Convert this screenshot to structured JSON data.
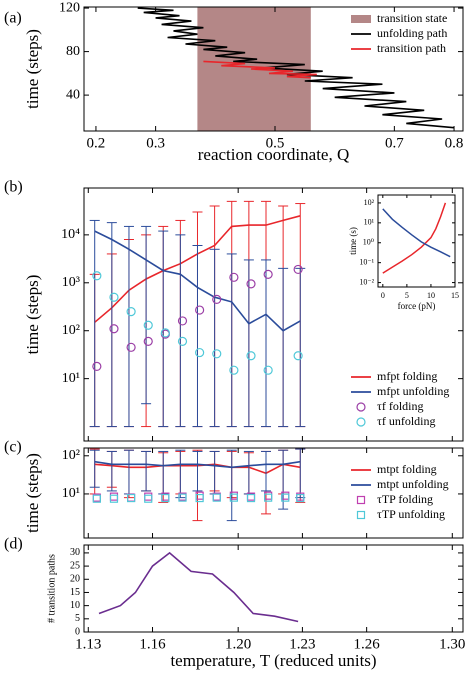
{
  "chart_data": [
    {
      "type": "line",
      "panel": "(a)",
      "xlabel": "reaction coordinate, Q",
      "ylabel": "time (steps)",
      "xlim": [
        0.18,
        0.815
      ],
      "xticks": [
        0.2,
        0.3,
        0.5,
        0.7,
        0.8
      ],
      "ylim": [
        7,
        121
      ],
      "yticks": [
        40,
        80,
        120
      ],
      "legend": "upper right",
      "span": {
        "name": "transition state",
        "x": [
          0.37,
          0.56
        ],
        "color": "#b48787"
      },
      "series": [
        {
          "name": "unfolding path",
          "color": "#000000",
          "style": "line",
          "x": [
            0.27,
            0.33,
            0.28,
            0.34,
            0.3,
            0.36,
            0.31,
            0.38,
            0.33,
            0.37,
            0.32,
            0.4,
            0.35,
            0.42,
            0.38,
            0.45,
            0.4,
            0.47,
            0.43,
            0.55,
            0.48,
            0.58,
            0.52,
            0.63,
            0.55,
            0.68,
            0.58,
            0.7,
            0.6,
            0.72,
            0.65,
            0.75,
            0.68,
            0.78,
            0.72,
            0.8
          ],
          "values": [
            120,
            118,
            116,
            113,
            111,
            108,
            105,
            102,
            99,
            96,
            93,
            90,
            87,
            84,
            82,
            79,
            76,
            73,
            71,
            68,
            65,
            62,
            59,
            56,
            53,
            50,
            46,
            42,
            38,
            34,
            30,
            26,
            22,
            18,
            14,
            10
          ]
        },
        {
          "name": "transition path",
          "color": "#e8262b",
          "style": "line",
          "x": [
            0.38,
            0.45,
            0.41,
            0.5,
            0.46,
            0.53,
            0.49,
            0.57,
            0.52,
            0.56
          ],
          "values": [
            71,
            69,
            67,
            65,
            64,
            62,
            60,
            59,
            57,
            56
          ]
        }
      ]
    },
    {
      "type": "line",
      "panel": "(b)",
      "ylabel": "time (steps)",
      "ylog": true,
      "xlim": [
        1.128,
        1.305
      ],
      "xticks": [
        1.13,
        1.16,
        1.2,
        1.23,
        1.26,
        1.3
      ],
      "xtick_labels": false,
      "ylim": [
        0.5,
        95000
      ],
      "yticks": [
        {
          "value": 10,
          "label": "10¹"
        },
        {
          "value": 100,
          "label": "10²"
        },
        {
          "value": 1000,
          "label": "10³"
        },
        {
          "value": 10000,
          "label": "10⁴"
        }
      ],
      "legend": "lower right",
      "series": [
        {
          "name": "mfpt folding",
          "color": "#e8262b",
          "style": "line",
          "x": [
            1.133,
            1.141,
            1.149,
            1.157,
            1.165,
            1.173,
            1.181,
            1.189,
            1.197,
            1.205,
            1.213,
            1.221,
            1.229
          ],
          "values": [
            150,
            300,
            700,
            1200,
            1800,
            2500,
            4000,
            6000,
            15000,
            16000,
            16000,
            20000,
            25000
          ],
          "lower": [
            1,
            1,
            1,
            1,
            1,
            1,
            1,
            1,
            1,
            1,
            1,
            1,
            1
          ],
          "upper": [
            1500,
            4000,
            8000,
            10000,
            15000,
            20000,
            30000,
            40000,
            50000,
            50000,
            50000,
            40000,
            45000
          ]
        },
        {
          "name": "mfpt unfolding",
          "color": "#2b4c9b",
          "style": "line",
          "x": [
            1.133,
            1.141,
            1.149,
            1.157,
            1.165,
            1.173,
            1.181,
            1.189,
            1.197,
            1.205,
            1.213,
            1.221,
            1.229
          ],
          "values": [
            12000,
            8000,
            5000,
            3000,
            1800,
            1500,
            800,
            500,
            400,
            140,
            220,
            100,
            160
          ],
          "lower": [
            1,
            1,
            1,
            3,
            1,
            1,
            1,
            1,
            1,
            1,
            1,
            1,
            1
          ],
          "upper": [
            20000,
            18000,
            15000,
            15000,
            12000,
            10000,
            6000,
            5000,
            4000,
            3000,
            3000,
            2000,
            2000
          ]
        },
        {
          "name": "τf folding",
          "color": "#9b3fa6",
          "style": "marker",
          "marker": "circle",
          "x": [
            1.134,
            1.142,
            1.15,
            1.158,
            1.166,
            1.174,
            1.182,
            1.19,
            1.198,
            1.206,
            1.214,
            1.228
          ],
          "values": [
            18,
            110,
            45,
            60,
            85,
            160,
            270,
            450,
            1300,
            950,
            1500,
            1900
          ]
        },
        {
          "name": "τf unfolding",
          "color": "#4fc8d8",
          "style": "marker",
          "marker": "circle",
          "x": [
            1.134,
            1.142,
            1.15,
            1.158,
            1.166,
            1.174,
            1.182,
            1.19,
            1.198,
            1.206,
            1.214,
            1.228
          ],
          "values": [
            1400,
            500,
            250,
            130,
            90,
            60,
            35,
            33,
            15,
            30,
            15,
            30
          ]
        }
      ]
    },
    {
      "type": "line",
      "xlabel": "force (pN)",
      "ylabel": "time (s)",
      "ylog": true,
      "xlim": [
        -1,
        15
      ],
      "xticks": [
        0,
        5,
        10,
        15
      ],
      "ylim": [
        0.006,
        250
      ],
      "yticks": [
        {
          "value": 0.01,
          "label": "10⁻²"
        },
        {
          "value": 0.1,
          "label": "10⁻¹"
        },
        {
          "value": 1,
          "label": "10⁰"
        },
        {
          "value": 10,
          "label": "10¹"
        },
        {
          "value": 100,
          "label": "10²"
        }
      ],
      "series": [
        {
          "color": "#e8262b",
          "style": "line",
          "x": [
            0,
            2,
            4,
            6,
            8,
            10,
            11,
            12,
            13
          ],
          "values": [
            0.03,
            0.06,
            0.12,
            0.25,
            0.6,
            1.8,
            5,
            20,
            100
          ]
        },
        {
          "color": "#2b4c9b",
          "style": "line",
          "x": [
            0,
            2,
            4,
            6,
            8,
            10,
            12,
            14
          ],
          "values": [
            50,
            15,
            6,
            2.5,
            1.1,
            0.6,
            0.35,
            0.2
          ]
        }
      ]
    },
    {
      "type": "line",
      "panel": "(c)",
      "ylabel": "time (steps)",
      "ylog": true,
      "xlim": [
        1.128,
        1.305
      ],
      "xticks": [
        1.13,
        1.16,
        1.2,
        1.23,
        1.26,
        1.3
      ],
      "xtick_labels": false,
      "ylim": [
        0.7,
        160
      ],
      "yticks": [
        {
          "value": 10,
          "label": "10¹"
        },
        {
          "value": 100,
          "label": "10²"
        }
      ],
      "legend": "right",
      "series": [
        {
          "name": "mtpt folding",
          "color": "#e8262b",
          "style": "line",
          "x": [
            1.133,
            1.141,
            1.149,
            1.157,
            1.165,
            1.173,
            1.181,
            1.189,
            1.197,
            1.205,
            1.213,
            1.221,
            1.229
          ],
          "values": [
            60,
            55,
            50,
            50,
            55,
            55,
            55,
            60,
            50,
            50,
            35,
            60,
            50
          ],
          "lower": [
            10,
            15,
            8,
            12,
            6,
            10,
            2,
            12,
            8,
            10,
            3,
            10,
            6
          ],
          "upper": [
            150,
            130,
            140,
            130,
            120,
            130,
            140,
            130,
            130,
            120,
            130,
            140,
            150
          ]
        },
        {
          "name": "mtpt unfolding",
          "color": "#2b4c9b",
          "style": "line",
          "x": [
            1.133,
            1.141,
            1.149,
            1.157,
            1.165,
            1.173,
            1.181,
            1.189,
            1.197,
            1.205,
            1.213,
            1.221,
            1.229
          ],
          "values": [
            70,
            60,
            60,
            60,
            55,
            60,
            60,
            55,
            50,
            55,
            60,
            60,
            70
          ],
          "lower": [
            15,
            12,
            10,
            12,
            10,
            8,
            12,
            10,
            2,
            10,
            12,
            4,
            8
          ],
          "upper": [
            140,
            130,
            140,
            130,
            130,
            140,
            130,
            130,
            140,
            130,
            130,
            140,
            150
          ]
        },
        {
          "name": "τTP folding",
          "color": "#c03fb0",
          "style": "marker",
          "marker": "square",
          "x": [
            1.134,
            1.142,
            1.15,
            1.158,
            1.166,
            1.174,
            1.182,
            1.19,
            1.198,
            1.206,
            1.214,
            1.222,
            1.229
          ],
          "values": [
            8,
            8.5,
            8,
            8.5,
            8.5,
            8.5,
            9,
            8.5,
            9,
            8.5,
            9,
            9,
            8.5
          ]
        },
        {
          "name": "τTP unfolding",
          "color": "#4fc8d8",
          "style": "marker",
          "marker": "square",
          "x": [
            1.134,
            1.142,
            1.15,
            1.158,
            1.166,
            1.174,
            1.182,
            1.19,
            1.198,
            1.206,
            1.214,
            1.222,
            1.229
          ],
          "values": [
            7.5,
            7.5,
            7.8,
            7.5,
            7.8,
            8,
            7.8,
            8,
            8,
            7.8,
            8,
            8,
            7.8
          ]
        }
      ]
    },
    {
      "type": "line",
      "panel": "(d)",
      "xlabel": "temperature, T (reduced units)",
      "ylabel": "# transition paths",
      "xlim": [
        1.128,
        1.305
      ],
      "xticks": [
        1.13,
        1.16,
        {
          "value": 1.2,
          "label": "1.20"
        },
        1.23,
        1.26,
        {
          "value": 1.3,
          "label": "1.30"
        }
      ],
      "ylim": [
        0,
        33
      ],
      "yticks": [
        0,
        5,
        10,
        15,
        20,
        25,
        30
      ],
      "series": [
        {
          "color": "#6a2d8f",
          "style": "line",
          "x": [
            1.135,
            1.145,
            1.152,
            1.16,
            1.168,
            1.178,
            1.188,
            1.198,
            1.207,
            1.217,
            1.228
          ],
          "values": [
            7,
            10,
            15,
            25,
            30,
            23,
            22,
            15,
            7,
            6,
            4
          ]
        }
      ]
    }
  ]
}
